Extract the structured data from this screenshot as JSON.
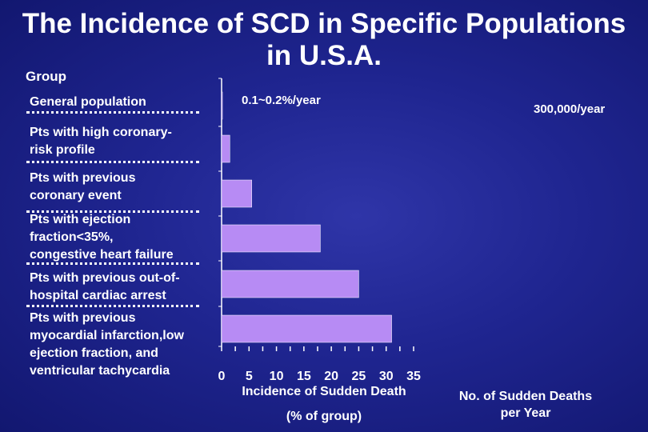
{
  "title": {
    "line1": "The Incidence of SCD in Specific Populations",
    "line2": "in U.S.A."
  },
  "group_header": "Group",
  "rate_note": "0.1~0.2%/year",
  "total_note": "300,000/year",
  "x_axis_label_line1": "Incidence of Sudden Death",
  "x_axis_label_line2": "(% of group)",
  "right_axis_label": "No. of Sudden Deaths\nper Year",
  "colors": {
    "bar": "#b78bf4",
    "axis": "#ffffff",
    "text": "#ffffff",
    "background": "#1f2590"
  },
  "chart_data": {
    "type": "bar",
    "orientation": "horizontal",
    "categories": [
      "General population",
      "Pts with high coronary-\nrisk profile",
      "Pts with previous\ncoronary event",
      "Pts with ejection\nfraction<35%,\ncongestive heart failure",
      "Pts with previous out-of-\nhospital cardiac arrest",
      "Pts with previous\nmyocardial infarction,low\nejection fraction, and\nventricular tachycardia"
    ],
    "values": [
      0.15,
      1.5,
      5.5,
      18,
      25,
      31
    ],
    "xlim": [
      0,
      35
    ],
    "xticks": [
      "0",
      "5",
      "10",
      "15",
      "20",
      "25",
      "30",
      "35"
    ],
    "xlabel": "Incidence of Sudden Death (% of group)",
    "grid": false,
    "legend": "none"
  }
}
